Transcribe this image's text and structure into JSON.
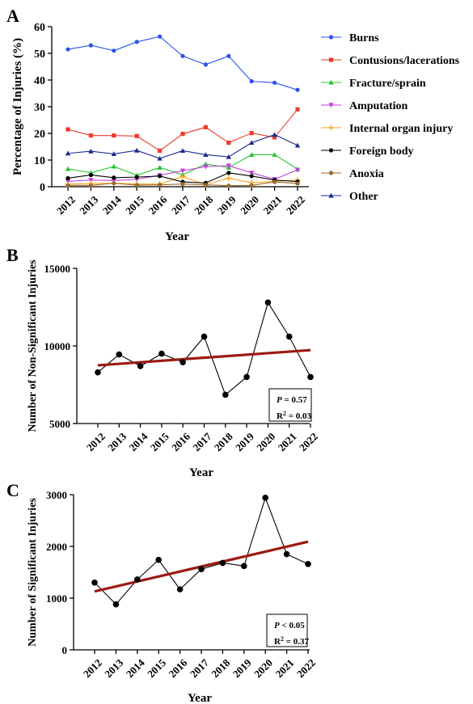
{
  "chart_data": [
    {
      "panel": "A",
      "type": "line",
      "categories": [
        "2012",
        "2013",
        "2014",
        "2015",
        "2016",
        "2017",
        "2018",
        "2019",
        "2020",
        "2021",
        "2022"
      ],
      "xlabel": "Year",
      "ylabel": "Percentage of Injuries (%)",
      "ylim": [
        0,
        60
      ],
      "yticks": [
        "0",
        "10",
        "20",
        "30",
        "40",
        "50",
        "60"
      ],
      "grid": false,
      "legend": "right",
      "series": [
        {
          "name": "Burns",
          "color": "#2a52e8",
          "marker": "circle",
          "values": [
            51.5,
            53.0,
            51.0,
            54.3,
            56.3,
            49.0,
            45.8,
            49.0,
            39.5,
            39.0,
            36.3
          ]
        },
        {
          "name": "Contusions/lacerations",
          "color": "#ee3a2c",
          "marker": "square",
          "values": [
            21.5,
            19.2,
            19.2,
            19.0,
            13.5,
            19.8,
            22.3,
            16.5,
            20.1,
            18.5,
            29.0
          ]
        },
        {
          "name": "Fracture/sprain",
          "color": "#27c42f",
          "marker": "triangle-up",
          "values": [
            6.7,
            5.2,
            7.6,
            4.3,
            7.2,
            4.5,
            8.5,
            7.2,
            12.0,
            12.0,
            6.6
          ]
        },
        {
          "name": "Amputation",
          "color": "#c23fe0",
          "marker": "triangle-down",
          "values": [
            2.0,
            2.5,
            2.3,
            2.8,
            4.3,
            6.0,
            7.5,
            7.9,
            5.2,
            2.8,
            6.3
          ]
        },
        {
          "name": "Internal organ injury",
          "color": "#f5a623",
          "marker": "plus",
          "values": [
            1.0,
            1.2,
            1.3,
            1.0,
            1.0,
            3.8,
            0.8,
            3.2,
            1.5,
            2.0,
            2.5
          ]
        },
        {
          "name": "Foreign body",
          "color": "#000000",
          "marker": "circle",
          "values": [
            3.2,
            4.4,
            3.4,
            3.6,
            4.0,
            1.8,
            1.4,
            5.2,
            4.0,
            2.5,
            1.9
          ]
        },
        {
          "name": "Anoxia",
          "color": "#9c6a2e",
          "marker": "circle",
          "values": [
            0.5,
            0.5,
            1.3,
            0.6,
            0.7,
            1.0,
            0.7,
            0.4,
            0.5,
            1.8,
            1.2
          ]
        },
        {
          "name": "Other",
          "color": "#1b2a8f",
          "marker": "triangle-up",
          "values": [
            12.5,
            13.3,
            12.3,
            13.6,
            10.6,
            13.5,
            12.0,
            11.2,
            16.5,
            19.5,
            15.5
          ]
        }
      ]
    },
    {
      "panel": "B",
      "type": "scatter",
      "categories": [
        "2012",
        "2013",
        "2014",
        "2015",
        "2016",
        "2017",
        "2018",
        "2019",
        "2020",
        "2021",
        "2022"
      ],
      "xlabel": "Year",
      "ylabel": "Number of Non-Significant Injuries",
      "ylim": [
        5000,
        15000
      ],
      "yticks": [
        "5000",
        "10000",
        "15000"
      ],
      "grid": false,
      "values": [
        8300,
        9450,
        8700,
        9500,
        8950,
        10600,
        6850,
        8000,
        12800,
        10600,
        8000
      ],
      "trend": [
        8750,
        9730
      ],
      "trend_color": "#9b1b12",
      "stats": {
        "p_symbol": "P",
        "p_text": " = 0.57",
        "r2_label": "R",
        "r2_sup": "2",
        "r2_text": " = 0.03"
      }
    },
    {
      "panel": "C",
      "type": "scatter",
      "categories": [
        "2012",
        "2013",
        "2014",
        "2015",
        "2016",
        "2017",
        "2018",
        "2019",
        "2020",
        "2021",
        "2022"
      ],
      "xlabel": "Year",
      "ylabel": "Number of Significant Injuries",
      "ylim": [
        0,
        3000
      ],
      "yticks": [
        "0",
        "1000",
        "2000",
        "3000"
      ],
      "grid": false,
      "values": [
        1300,
        880,
        1360,
        1740,
        1170,
        1560,
        1680,
        1620,
        2940,
        1850,
        1660
      ],
      "trend": [
        1130,
        2090
      ],
      "trend_color": "#9b1b12",
      "stats": {
        "p_symbol": "P",
        "p_text": " < 0.05",
        "r2_label": "R",
        "r2_sup": "2",
        "r2_text": " = 0.37"
      }
    }
  ]
}
